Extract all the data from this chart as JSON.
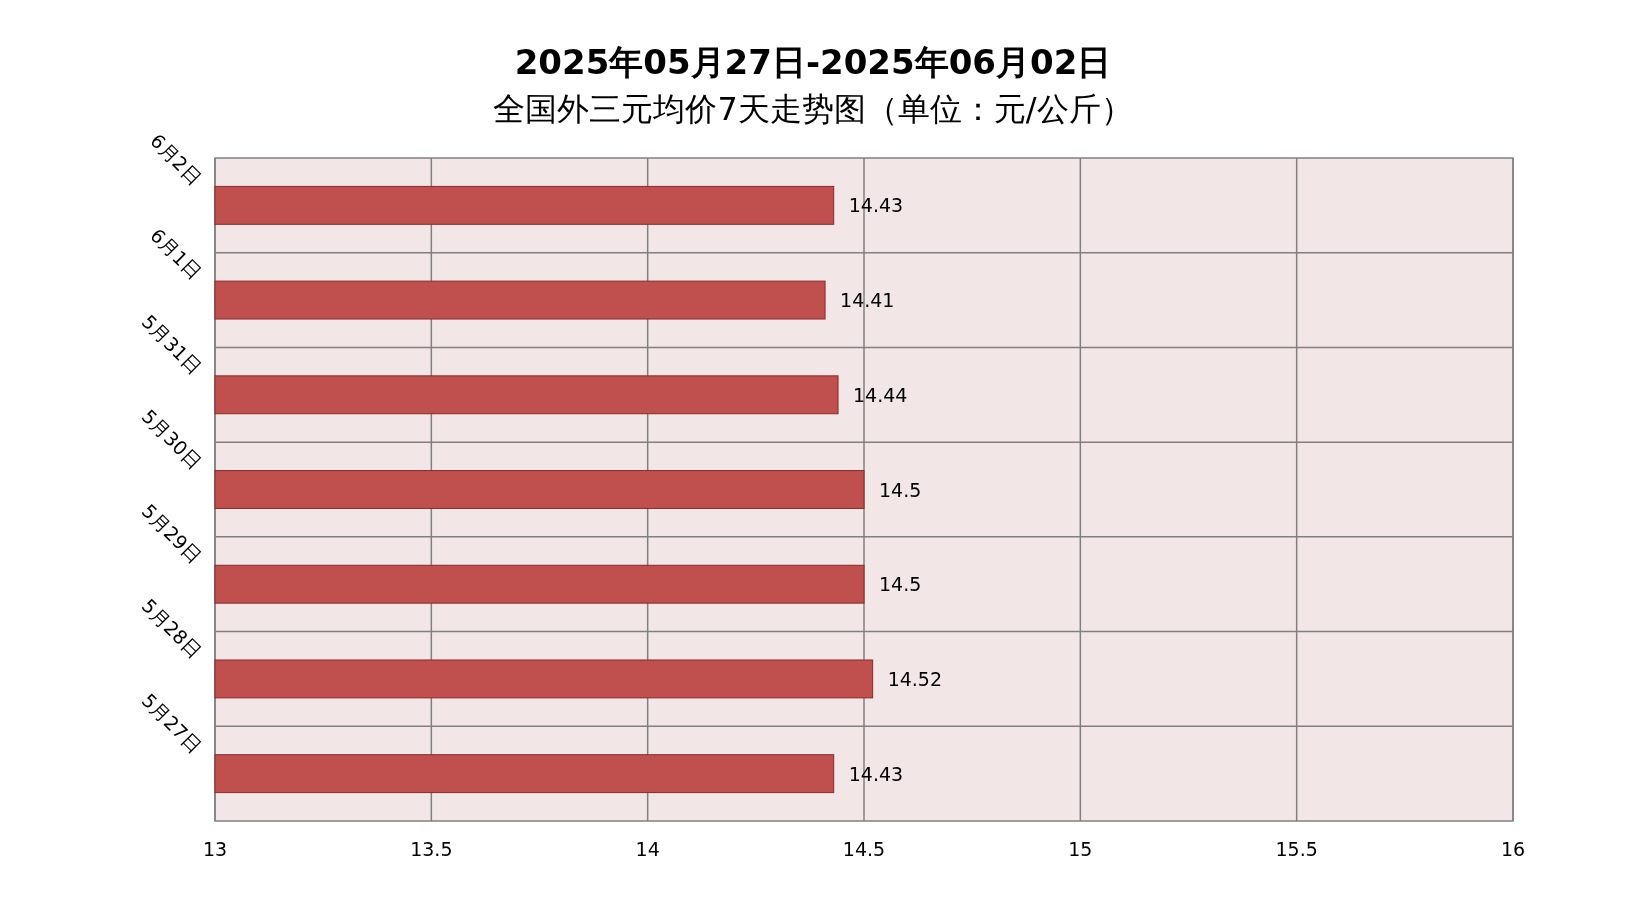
{
  "chart_data": {
    "type": "bar",
    "orientation": "horizontal",
    "title": "2025年05月27日-2025年06月02日",
    "subtitle": "全国外三元均价7天走势图（单位：元/公斤）",
    "categories": [
      "6月2日",
      "6月1日",
      "5月31日",
      "5月30日",
      "5月29日",
      "5月28日",
      "5月27日"
    ],
    "values": [
      14.43,
      14.41,
      14.44,
      14.5,
      14.5,
      14.52,
      14.43
    ],
    "color": "#c0504d",
    "xlim": [
      13,
      16
    ],
    "xticks": [
      13,
      13.5,
      14,
      14.5,
      15,
      15.5,
      16
    ],
    "grid": true,
    "data_labels": true
  }
}
